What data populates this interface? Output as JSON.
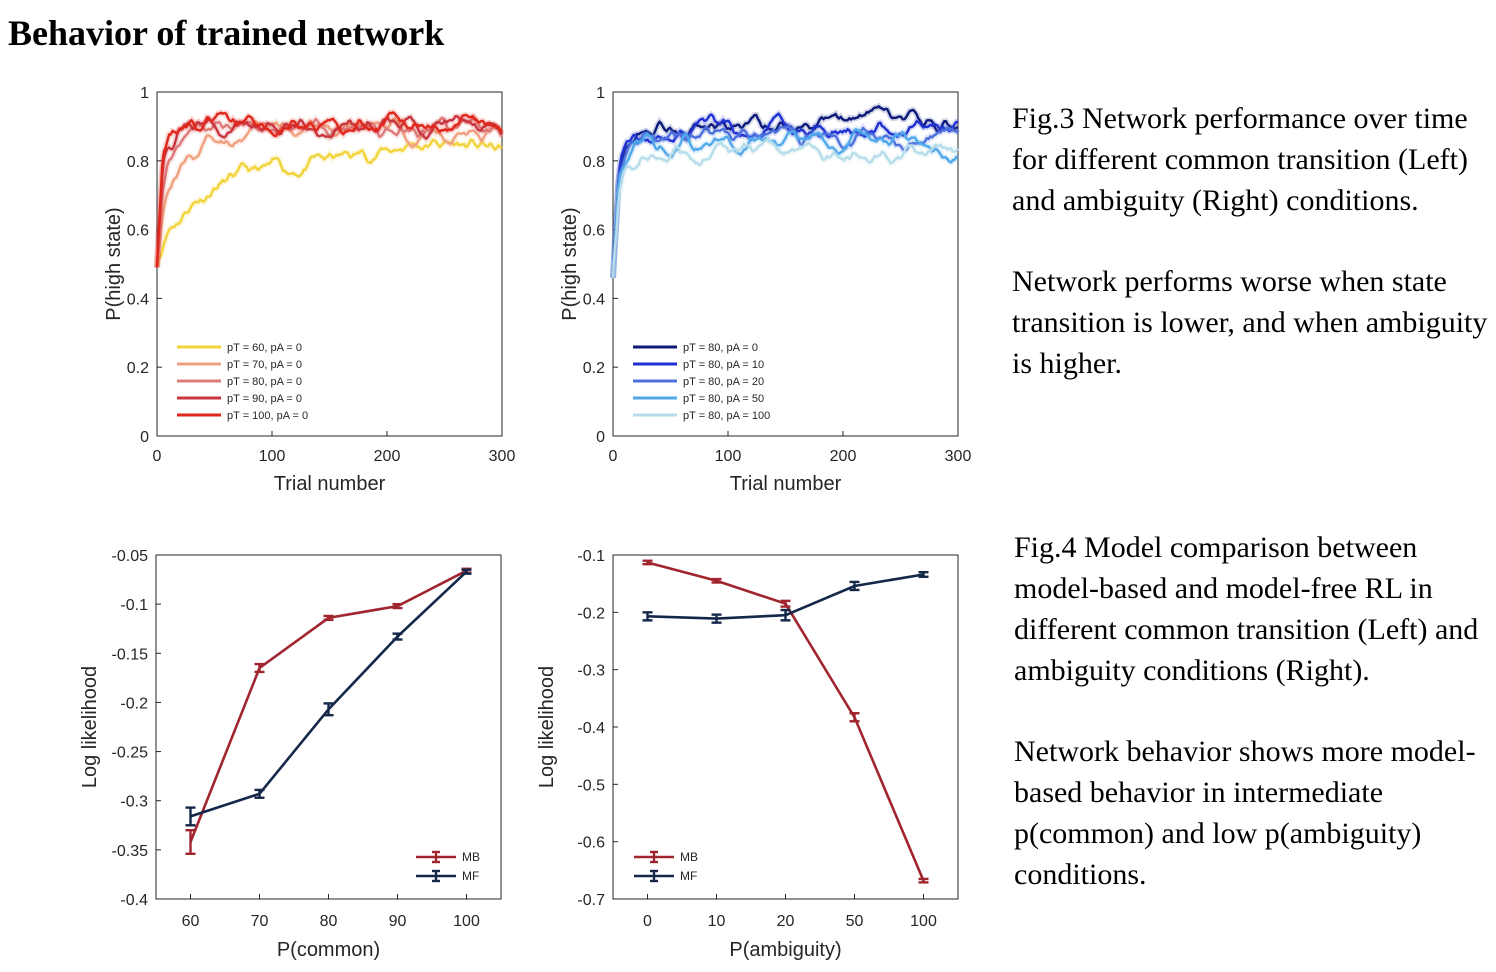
{
  "title": "Behavior of trained network",
  "colors": {
    "pT60": "#f2d43a",
    "pT70": "#f0a07e",
    "pT80": "#de7b79",
    "pT90": "#c9353f",
    "pT100": "#e1271c",
    "pA0": "#0d1a7a",
    "pA10": "#1f30d1",
    "pA20": "#4c6fde",
    "pA50": "#4fa8ea",
    "pA100": "#b6dde9",
    "MB": "#a1252f",
    "MF": "#15284a"
  },
  "captions": {
    "fig3_p1": "Fig.3 Network performance over time for different common transition (Left) and ambiguity (Right) conditions.",
    "fig3_p2": "Network performs worse when state transition is lower, and when ambiguity is higher.",
    "fig4_p1": "Fig.4 Model comparison between model-based and model-free RL in different common transition (Left) and ambiguity conditions (Right).",
    "fig4_p2": "Network behavior shows more model-based behavior in intermediate p(common) and low p(ambiguity) conditions."
  },
  "chart_data": [
    {
      "type": "line",
      "xlabel": "Trial number",
      "ylabel": "P(high state)",
      "xlim": [
        0,
        300
      ],
      "ylim": [
        0,
        1
      ],
      "xticks": [
        0,
        100,
        200,
        300
      ],
      "yticks": [
        0,
        0.2,
        0.4,
        0.6,
        0.8,
        1
      ],
      "legend_position": "bottom-left",
      "series": [
        {
          "name": "pT = 60, pA = 0",
          "color_key": "pT60",
          "x": [
            0,
            5,
            10,
            20,
            30,
            40,
            50,
            60,
            80,
            100,
            120,
            150,
            180,
            200,
            220,
            250,
            280,
            300
          ],
          "y": [
            0.49,
            0.57,
            0.61,
            0.64,
            0.68,
            0.7,
            0.73,
            0.74,
            0.76,
            0.77,
            0.78,
            0.8,
            0.82,
            0.83,
            0.85,
            0.85,
            0.84,
            0.83
          ]
        },
        {
          "name": "pT = 70, pA = 0",
          "color_key": "pT70",
          "x": [
            0,
            5,
            10,
            20,
            30,
            40,
            50,
            60,
            80,
            100,
            150,
            200,
            250,
            300
          ],
          "y": [
            0.49,
            0.66,
            0.73,
            0.78,
            0.82,
            0.84,
            0.86,
            0.87,
            0.88,
            0.89,
            0.89,
            0.89,
            0.88,
            0.88
          ]
        },
        {
          "name": "pT = 80, pA = 0",
          "color_key": "pT80",
          "x": [
            0,
            5,
            10,
            20,
            30,
            40,
            60,
            100,
            150,
            200,
            250,
            300
          ],
          "y": [
            0.49,
            0.72,
            0.8,
            0.86,
            0.88,
            0.89,
            0.9,
            0.9,
            0.89,
            0.89,
            0.89,
            0.89
          ]
        },
        {
          "name": "pT = 90, pA = 0",
          "color_key": "pT90",
          "x": [
            0,
            5,
            10,
            20,
            30,
            60,
            100,
            150,
            200,
            250,
            300
          ],
          "y": [
            0.49,
            0.8,
            0.86,
            0.89,
            0.9,
            0.9,
            0.91,
            0.9,
            0.9,
            0.9,
            0.9
          ]
        },
        {
          "name": "pT = 100, pA = 0",
          "color_key": "pT100",
          "x": [
            0,
            5,
            10,
            20,
            30,
            60,
            100,
            150,
            200,
            250,
            300
          ],
          "y": [
            0.49,
            0.84,
            0.88,
            0.9,
            0.91,
            0.91,
            0.91,
            0.91,
            0.91,
            0.91,
            0.9
          ]
        }
      ]
    },
    {
      "type": "line",
      "xlabel": "Trial number",
      "ylabel": "P(high state)",
      "xlim": [
        0,
        300
      ],
      "ylim": [
        0,
        1
      ],
      "xticks": [
        0,
        100,
        200,
        300
      ],
      "yticks": [
        0,
        0.2,
        0.4,
        0.6,
        0.8,
        1
      ],
      "legend_position": "bottom-left",
      "series": [
        {
          "name": "pT = 80, pA = 0",
          "color_key": "pA0",
          "x": [
            0,
            5,
            10,
            20,
            30,
            60,
            100,
            150,
            200,
            220,
            250,
            300
          ],
          "y": [
            0.46,
            0.78,
            0.84,
            0.88,
            0.9,
            0.9,
            0.9,
            0.91,
            0.91,
            0.93,
            0.91,
            0.9
          ]
        },
        {
          "name": "pT = 80, pA = 10",
          "color_key": "pA10",
          "x": [
            0,
            5,
            10,
            20,
            30,
            60,
            100,
            150,
            200,
            250,
            300
          ],
          "y": [
            0.46,
            0.77,
            0.83,
            0.86,
            0.88,
            0.89,
            0.89,
            0.89,
            0.89,
            0.89,
            0.89
          ]
        },
        {
          "name": "pT = 80, pA = 20",
          "color_key": "pA20",
          "x": [
            0,
            5,
            10,
            20,
            30,
            60,
            100,
            150,
            200,
            250,
            300
          ],
          "y": [
            0.46,
            0.76,
            0.82,
            0.85,
            0.86,
            0.87,
            0.87,
            0.87,
            0.87,
            0.87,
            0.87
          ]
        },
        {
          "name": "pT = 80, pA = 50",
          "color_key": "pA50",
          "x": [
            0,
            5,
            10,
            20,
            30,
            60,
            100,
            150,
            200,
            250,
            300
          ],
          "y": [
            0.46,
            0.75,
            0.8,
            0.83,
            0.84,
            0.85,
            0.85,
            0.85,
            0.85,
            0.85,
            0.85
          ]
        },
        {
          "name": "pT = 80, pA = 100",
          "color_key": "pA100",
          "x": [
            0,
            5,
            10,
            20,
            30,
            60,
            100,
            150,
            200,
            250,
            300
          ],
          "y": [
            0.46,
            0.73,
            0.78,
            0.81,
            0.82,
            0.82,
            0.82,
            0.82,
            0.82,
            0.82,
            0.82
          ]
        }
      ]
    },
    {
      "type": "line",
      "xlabel": "P(common)",
      "ylabel": "Log likelihood",
      "categories": [
        "60",
        "70",
        "80",
        "90",
        "100"
      ],
      "ylim": [
        -0.4,
        -0.05
      ],
      "yticks": [
        -0.4,
        -0.35,
        -0.3,
        -0.25,
        -0.2,
        -0.15,
        -0.1,
        -0.05
      ],
      "ytick_labels": [
        "-0.4",
        "-0.35",
        "-0.3",
        "-0.25",
        "-0.2",
        "-0.15",
        "-0.1",
        "-0.05"
      ],
      "legend_position": "bottom-right",
      "series": [
        {
          "name": "MB",
          "color_key": "MB",
          "values": [
            -0.342,
            -0.165,
            -0.114,
            -0.102,
            -0.066
          ],
          "err": [
            0.012,
            0.004,
            0.002,
            0.002,
            0.002
          ]
        },
        {
          "name": "MF",
          "color_key": "MF",
          "values": [
            -0.316,
            -0.293,
            -0.207,
            -0.133,
            -0.067
          ],
          "err": [
            0.009,
            0.004,
            0.006,
            0.003,
            0.002
          ]
        }
      ]
    },
    {
      "type": "line",
      "xlabel": "P(ambiguity)",
      "ylabel": "Log likelihood",
      "categories": [
        "0",
        "10",
        "20",
        "50",
        "100"
      ],
      "ylim": [
        -0.7,
        -0.1
      ],
      "yticks": [
        -0.7,
        -0.6,
        -0.5,
        -0.4,
        -0.3,
        -0.2,
        -0.1
      ],
      "ytick_labels": [
        "-0.7",
        "-0.6",
        "-0.5",
        "-0.4",
        "-0.3",
        "-0.2",
        "-0.1"
      ],
      "legend_position": "bottom-left",
      "series": [
        {
          "name": "MB",
          "color_key": "MB",
          "values": [
            -0.113,
            -0.145,
            -0.185,
            -0.383,
            -0.668
          ],
          "err": [
            0.003,
            0.003,
            0.005,
            0.007,
            0.003
          ]
        },
        {
          "name": "MF",
          "color_key": "MF",
          "values": [
            -0.207,
            -0.211,
            -0.205,
            -0.154,
            -0.134
          ],
          "err": [
            0.007,
            0.007,
            0.009,
            0.007,
            0.004
          ]
        }
      ]
    }
  ]
}
